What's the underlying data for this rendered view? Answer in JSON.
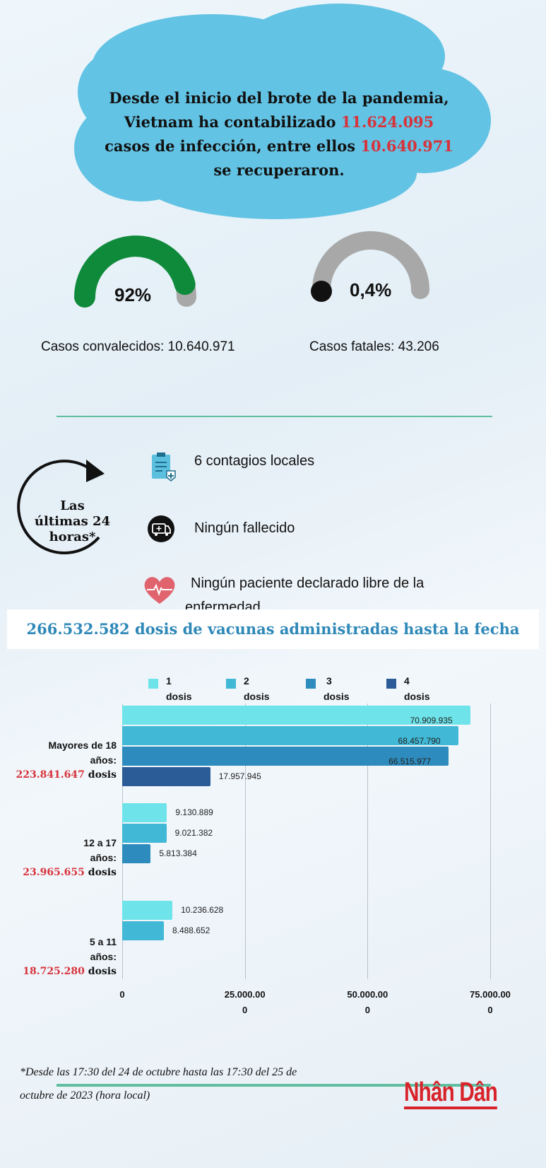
{
  "headline": {
    "l1": "Desde el inicio del brote de la pandemia,",
    "l2a": "Vietnam ha contabilizado ",
    "cases": "11.624.095",
    "l3a": "casos de infección, entre ellos ",
    "recovered": "10.640.971",
    "l4": "se recuperaron."
  },
  "gauges": [
    {
      "value": "92%",
      "fraction": 0.92,
      "label": "Casos convalecidos: 10.640.971",
      "color": "#0e8a3a"
    },
    {
      "value": "0,4%",
      "fraction": 0.004,
      "label": "Casos fatales: 43.206",
      "color": "#111111"
    }
  ],
  "last24": {
    "title1": "Las",
    "title2": "últimas 24",
    "title3": "horas*",
    "items": [
      {
        "icon": "clipboard-medical-icon",
        "text": "6 contagios locales"
      },
      {
        "icon": "ambulance-icon",
        "text": "Ningún fallecido"
      },
      {
        "icon": "heart-pulse-icon",
        "text1": "Ningún paciente declarado libre de la",
        "text2": "enfermedad"
      }
    ]
  },
  "banner": "266.532.582 dosis de vacunas administradas hasta la fecha",
  "chart_data": {
    "type": "bar",
    "orientation": "horizontal",
    "xlim": [
      0,
      75000000
    ],
    "grid": true,
    "legend": "top",
    "ticks": [
      {
        "l1": "0",
        "l2": ""
      },
      {
        "l1": "25.000.00",
        "l2": "0"
      },
      {
        "l1": "50.000.00",
        "l2": "0"
      },
      {
        "l1": "75.000.00",
        "l2": "0"
      }
    ],
    "series": [
      {
        "name1": "1",
        "name2": "dosis",
        "color": "#6ee4ea"
      },
      {
        "name1": "2",
        "name2": "dosis",
        "color": "#41b8d6"
      },
      {
        "name1": "3",
        "name2": "dosis",
        "color": "#2e8bbd"
      },
      {
        "name1": "4",
        "name2": "dosis",
        "color": "#2b5c97"
      }
    ],
    "categories": [
      {
        "l1": "Mayores de 18",
        "l2": "años:",
        "total": "223.841.647",
        "unit": " dosis",
        "values": [
          70909935,
          68457790,
          66515977,
          17957945
        ],
        "labels": [
          "70.909.935",
          "68.457.790",
          "66.515.977",
          "17.957.945"
        ]
      },
      {
        "l1": "12 a 17",
        "l2": "años:",
        "total": "23.965.655",
        "unit": " dosis",
        "values": [
          9130889,
          9021382,
          5813384
        ],
        "labels": [
          "9.130.889",
          "9.021.382",
          "5.813.384"
        ]
      },
      {
        "l1": "5 a 11",
        "l2": "años:",
        "total": "18.725.280",
        "unit": " dosis",
        "values": [
          10236628,
          8488652
        ],
        "labels": [
          "10.236.628",
          "8.488.652"
        ]
      }
    ]
  },
  "footer": {
    "l1": "*Desde las 17:30 del 24 de octubre hasta las 17:30 del 25 de",
    "l2": "octubre de 2023 (hora local)"
  },
  "logo": "Nhân Dân"
}
